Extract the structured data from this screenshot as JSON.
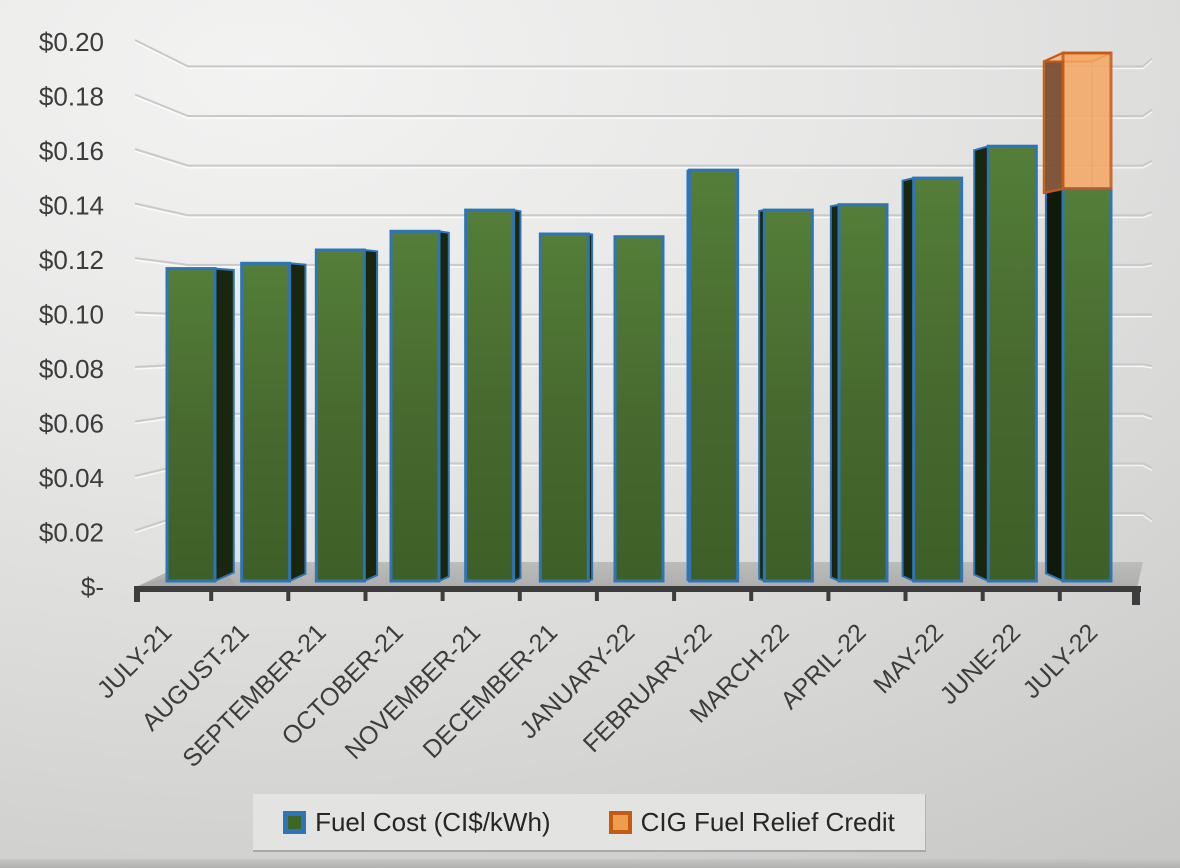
{
  "chart_data": {
    "type": "bar",
    "subtype": "3d-column-stacked",
    "categories": [
      "JULY-21",
      "AUGUST-21",
      "SEPTEMBER-21",
      "OCTOBER-21",
      "NOVEMBER-21",
      "DECEMBER-21",
      "JANUARY-22",
      "FEBRUARY-22",
      "MARCH-22",
      "APRIL-22",
      "MAY-22",
      "JUNE-22",
      "JULY-22"
    ],
    "series": [
      {
        "name": "Fuel Cost (CI$/kWh)",
        "color": "#4a7032",
        "border_color": "#2E75B6",
        "values": [
          0.117,
          0.119,
          0.124,
          0.131,
          0.139,
          0.13,
          0.129,
          0.154,
          0.139,
          0.141,
          0.151,
          0.163,
          0.147
        ]
      },
      {
        "name": "CIG Fuel Relief Credit",
        "color": "#F5A763",
        "border_color": "#C55A11",
        "values": [
          0,
          0,
          0,
          0,
          0,
          0,
          0,
          0,
          0,
          0,
          0,
          0,
          0.051
        ]
      }
    ],
    "y_axis": {
      "min": 0,
      "max": 0.2,
      "step": 0.02,
      "tick_labels": [
        "$0.20",
        "$0.18",
        "$0.16",
        "$0.14",
        "$0.12",
        "$0.10",
        "$0.08",
        "$0.06",
        "$0.04",
        "$0.02",
        "$-"
      ],
      "format": "currency-CI$"
    },
    "grid": true,
    "legend_position": "bottom",
    "label_color": "#3C3C3C",
    "gridline_color": "#c9c9c9"
  },
  "legend": {
    "items": [
      {
        "label": "Fuel Cost (CI$/kWh)",
        "swatch": "green-with-blue-border"
      },
      {
        "label": "CIG Fuel Relief Credit",
        "swatch": "orange"
      }
    ]
  }
}
